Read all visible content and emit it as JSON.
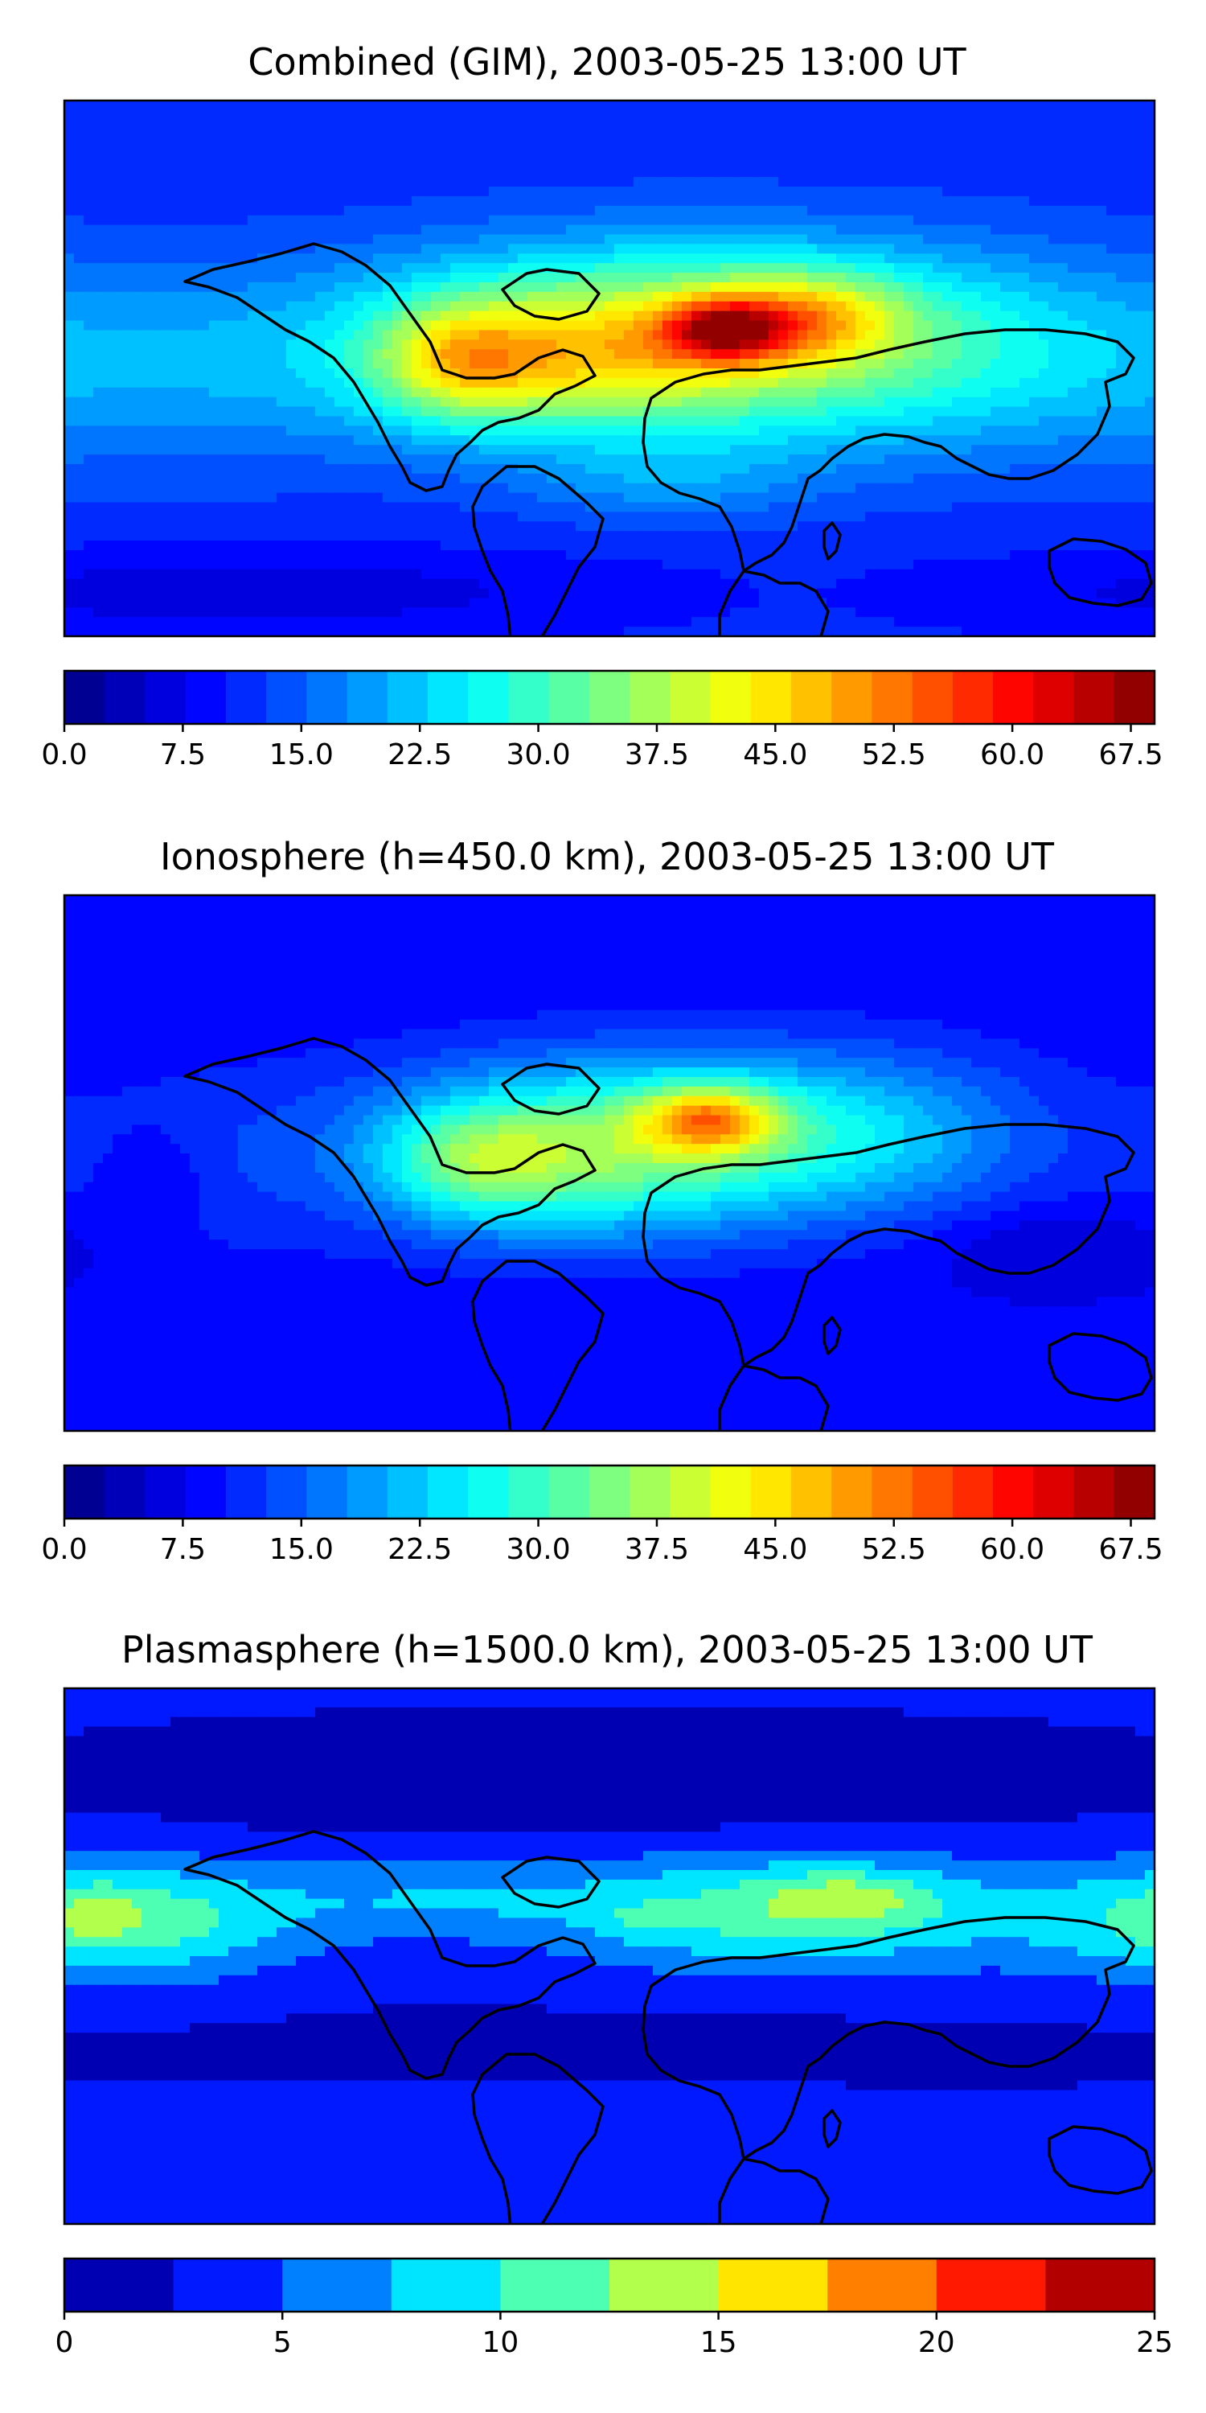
{
  "chart_data": [
    {
      "type": "heatmap",
      "map": "filled-contour world map",
      "title": "Combined (GIM), 2003-05-25 13:00 UT",
      "colorbar": {
        "min": 0.0,
        "max": 69.0,
        "levels": 27,
        "ticks": [
          "0.0",
          "7.5",
          "15.0",
          "22.5",
          "30.0",
          "37.5",
          "45.0",
          "52.5",
          "60.0",
          "67.5"
        ],
        "tick_values": [
          0,
          7.5,
          15,
          22.5,
          30,
          37.5,
          45,
          52.5,
          60,
          67.5
        ]
      },
      "field": {
        "background": 11,
        "blobs": [
          {
            "lon": 15,
            "lat": 10,
            "sx": 65,
            "sy": 22,
            "v": 28
          },
          {
            "lon": 38,
            "lat": 13,
            "sx": 14,
            "sy": 7,
            "v": 24
          },
          {
            "lon": 65,
            "lat": 18,
            "sx": 22,
            "sy": 10,
            "v": 14
          },
          {
            "lon": -50,
            "lat": 2,
            "sx": 20,
            "sy": 14,
            "v": 16
          },
          {
            "lon": -10,
            "lat": 0,
            "sx": 35,
            "sy": 16,
            "v": 8
          },
          {
            "lon": 110,
            "lat": 5,
            "sx": 60,
            "sy": 25,
            "v": 10
          },
          {
            "lon": -130,
            "lat": 0,
            "sx": 60,
            "sy": 25,
            "v": 7
          },
          {
            "lon": 20,
            "lat": -38,
            "sx": 35,
            "sy": 10,
            "v": 6
          },
          {
            "lon": -120,
            "lat": -75,
            "sx": 90,
            "sy": 10,
            "v": -5
          }
        ]
      }
    },
    {
      "type": "heatmap",
      "map": "filled-contour world map",
      "title": "Ionosphere  (h=450.0 km), 2003-05-25 13:00 UT",
      "colorbar": {
        "min": 0.0,
        "max": 69.0,
        "levels": 27,
        "ticks": [
          "0.0",
          "7.5",
          "15.0",
          "22.5",
          "30.0",
          "37.5",
          "45.0",
          "52.5",
          "60.0",
          "67.5"
        ],
        "tick_values": [
          0,
          7.5,
          15,
          22.5,
          30,
          37.5,
          45,
          52.5,
          60,
          67.5
        ]
      },
      "field": {
        "background": 8,
        "blobs": [
          {
            "lon": 10,
            "lat": 8,
            "sx": 55,
            "sy": 20,
            "v": 22
          },
          {
            "lon": 33,
            "lat": 15,
            "sx": 16,
            "sy": 8,
            "v": 22
          },
          {
            "lon": -45,
            "lat": 0,
            "sx": 22,
            "sy": 14,
            "v": 14
          },
          {
            "lon": -5,
            "lat": -5,
            "sx": 35,
            "sy": 18,
            "v": 6
          },
          {
            "lon": 90,
            "lat": 10,
            "sx": 40,
            "sy": 20,
            "v": 9
          },
          {
            "lon": -130,
            "lat": 0,
            "sx": 50,
            "sy": 25,
            "v": 4
          },
          {
            "lon": -150,
            "lat": -5,
            "sx": 12,
            "sy": 12,
            "v": -4
          },
          {
            "lon": 150,
            "lat": -28,
            "sx": 30,
            "sy": 10,
            "v": -4
          }
        ]
      }
    },
    {
      "type": "heatmap",
      "map": "filled-contour world map",
      "title": "Plasmasphere (h=1500.0 km), 2003-05-25 13:00 UT",
      "colorbar": {
        "min": 0,
        "max": 25,
        "levels": 10,
        "ticks": [
          "0",
          "5",
          "10",
          "15",
          "20",
          "25"
        ],
        "tick_values": [
          0,
          5,
          10,
          15,
          20,
          25
        ]
      },
      "field": {
        "background": 2.6,
        "blobs": [
          {
            "lon": 60,
            "lat": 15,
            "sx": 55,
            "sy": 14,
            "v": 9
          },
          {
            "lon": 80,
            "lat": 20,
            "sx": 18,
            "sy": 6,
            "v": 4
          },
          {
            "lon": 10,
            "lat": 12,
            "sx": 8,
            "sy": 4,
            "v": 2
          },
          {
            "lon": -160,
            "lat": 12,
            "sx": 40,
            "sy": 14,
            "v": 9
          },
          {
            "lon": -170,
            "lat": 15,
            "sx": 8,
            "sy": 6,
            "v": 3
          },
          {
            "lon": -60,
            "lat": 20,
            "sx": 40,
            "sy": 10,
            "v": 4
          },
          {
            "lon": 0,
            "lat": 55,
            "sx": 100,
            "sy": 12,
            "v": -2
          },
          {
            "lon": 0,
            "lat": -30,
            "sx": 120,
            "sy": 8,
            "v": -1
          },
          {
            "lon": -20,
            "lat": -58,
            "sx": 60,
            "sy": 8,
            "v": 2
          }
        ]
      }
    }
  ],
  "colors": {
    "jet_stops": [
      "#00007f",
      "#0000ff",
      "#007fff",
      "#00ffff",
      "#7fff7f",
      "#ffff00",
      "#ff7f00",
      "#ff0000",
      "#7f0000"
    ]
  }
}
